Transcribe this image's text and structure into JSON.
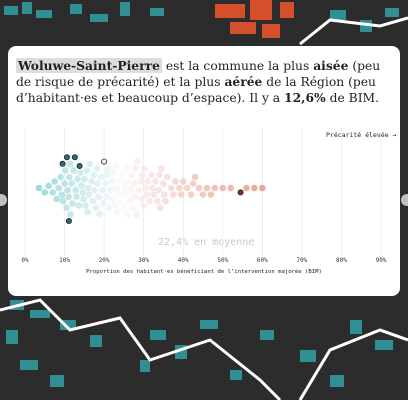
{
  "card": {
    "paragraph": [
      "Woluwe-Saint-Pierre",
      " est la commune la plus ",
      "aisée",
      " (peu de risque de précarité) et la plus ",
      "aérée",
      " de la Région (peu d’habitant·es et beaucoup d’espace). Il y a ",
      "12,6%",
      " de BIM."
    ]
  },
  "chart_data": {
    "type": "beeswarm",
    "annotation": "Précarité élevée →",
    "mean_label": "22,4% en moyenne",
    "xlabel": "Proportion des habitant·es bénéficiant de l’intervention majorée (BIM)",
    "xlim": [
      0,
      90
    ],
    "xticks": [
      {
        "value": 0,
        "label": "0%"
      },
      {
        "value": 10,
        "label": "10%"
      },
      {
        "value": 20,
        "label": "20%"
      },
      {
        "value": 30,
        "label": "30%"
      },
      {
        "value": 40,
        "label": "40%"
      },
      {
        "value": 50,
        "label": "50%"
      },
      {
        "value": 60,
        "label": "60%"
      },
      {
        "value": 70,
        "label": "70%"
      },
      {
        "value": 80,
        "label": "80%"
      },
      {
        "value": 90,
        "label": "90%"
      }
    ],
    "grid": true,
    "series": [
      {
        "color": "gradient",
        "values": [
          3.5,
          5,
          6,
          7,
          7.5,
          8,
          8.5,
          9,
          9.3,
          9.6,
          10,
          10.2,
          10.5,
          10.8,
          11,
          11.2,
          11.5,
          11.8,
          12,
          12.3,
          13,
          13.3,
          13.6,
          14,
          14.3,
          14.6,
          15,
          15.3,
          15.6,
          16,
          16.4,
          16.8,
          17.2,
          17.6,
          18,
          18.4,
          18.8,
          19.2,
          19.6,
          20.4,
          20.8,
          21.2,
          21.6,
          22,
          22.4,
          22.8,
          23.2,
          23.6,
          24,
          24.4,
          24.8,
          25.2,
          25.6,
          26,
          26.4,
          26.8,
          27.2,
          27.6,
          28,
          28.4,
          28.8,
          29.2,
          29.6,
          30,
          30.5,
          31,
          31.5,
          32,
          32.5,
          33,
          33.5,
          34,
          34.5,
          35,
          35.5,
          36,
          37,
          38,
          39,
          40,
          41,
          42,
          43,
          44,
          45,
          46,
          48,
          50,
          52,
          56,
          58,
          60,
          11.4,
          12.8,
          14.8,
          16.2,
          17.4,
          18.6,
          19.8,
          21,
          22.2,
          23.4,
          24.6,
          25.8,
          27,
          28.2,
          29.4,
          30.8,
          32.2,
          33.8,
          35.2,
          37.5,
          39.5,
          42.5,
          47,
          15.8,
          18.2,
          20.6,
          23,
          25.4,
          27.8,
          30.2,
          34.2
        ]
      },
      {
        "color": "#1f6f78",
        "values": [
          9.5,
          10.6,
          11.1,
          13.8,
          12.6
        ]
      },
      {
        "color": "#ffffff",
        "values": [
          20
        ]
      },
      {
        "color": "#8b2a1a",
        "values": [
          54.5
        ]
      }
    ]
  }
}
